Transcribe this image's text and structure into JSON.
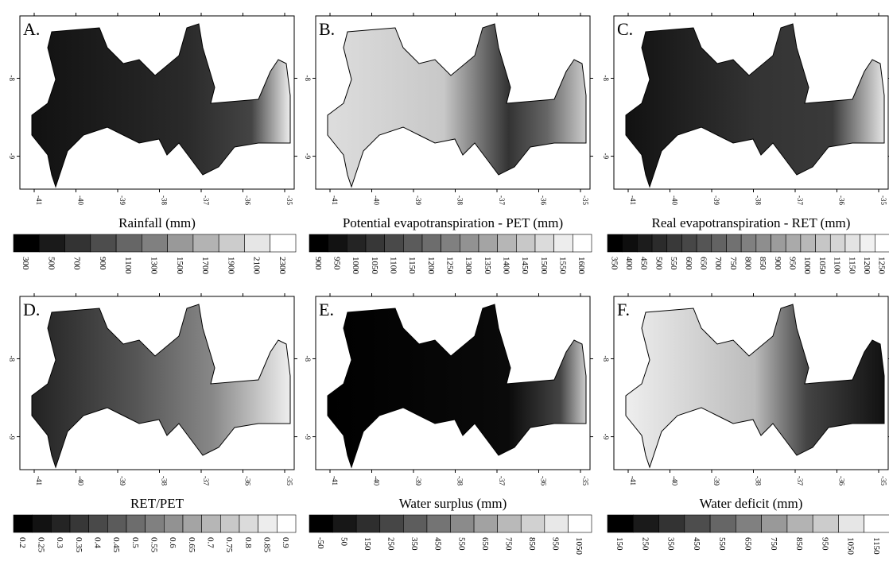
{
  "panels": [
    {
      "letter": "A.",
      "title": "Rainfall (mm)",
      "x_ticks": [
        "-41",
        "-40",
        "-39",
        "-38",
        "-37",
        "-36",
        "-35"
      ],
      "y_ticks": [
        "-8",
        "-9"
      ],
      "legend_labels": [
        "300",
        "500",
        "700",
        "900",
        "1100",
        "1300",
        "1500",
        "1700",
        "1900",
        "2100",
        "2300"
      ]
    },
    {
      "letter": "B.",
      "title": "Potential evapotranspiration  - PET (mm)",
      "x_ticks": [
        "-41",
        "-40",
        "-39",
        "-38",
        "-37",
        "-36",
        "-35"
      ],
      "y_ticks": [
        "-8",
        "-9"
      ],
      "legend_labels": [
        "900",
        "950",
        "1000",
        "1050",
        "1100",
        "1150",
        "1200",
        "1250",
        "1300",
        "1350",
        "1400",
        "1450",
        "1500",
        "1550",
        "1600"
      ]
    },
    {
      "letter": "C.",
      "title": "Real evapotranspiration - RET (mm)",
      "x_ticks": [
        "-41",
        "-40",
        "-39",
        "-38",
        "-37",
        "-36",
        "-35"
      ],
      "y_ticks": [
        "-8",
        "-9"
      ],
      "legend_labels": [
        "350",
        "400",
        "450",
        "500",
        "550",
        "600",
        "650",
        "700",
        "750",
        "800",
        "850",
        "900",
        "950",
        "1000",
        "1050",
        "1100",
        "1150",
        "1200",
        "1250"
      ]
    },
    {
      "letter": "D.",
      "title": "RET/PET",
      "x_ticks": [
        "-41",
        "-40",
        "-39",
        "-38",
        "-37",
        "-36",
        "-35"
      ],
      "y_ticks": [
        "-8",
        "-9"
      ],
      "legend_labels": [
        "0.2",
        "0.25",
        "0.3",
        "0.35",
        "0.4",
        "0.45",
        "0.5",
        "0.55",
        "0.6",
        "0.65",
        "0.7",
        "0.75",
        "0.8",
        "0.85",
        "0.9"
      ]
    },
    {
      "letter": "E.",
      "title": "Water surplus (mm)",
      "x_ticks": [
        "-41",
        "-40",
        "-39",
        "-38",
        "-37",
        "-36",
        "-35"
      ],
      "y_ticks": [
        "-8",
        "-9"
      ],
      "legend_labels": [
        "-50",
        "50",
        "150",
        "250",
        "350",
        "450",
        "550",
        "650",
        "750",
        "850",
        "950",
        "1050"
      ]
    },
    {
      "letter": "F.",
      "title": "Water deficit (mm)",
      "x_ticks": [
        "-41",
        "-40",
        "-39",
        "-38",
        "-37",
        "-36",
        "-35"
      ],
      "y_ticks": [
        "-8",
        "-9"
      ],
      "legend_labels": [
        "150",
        "250",
        "350",
        "450",
        "550",
        "650",
        "750",
        "850",
        "950",
        "1050",
        "1150"
      ]
    }
  ]
}
